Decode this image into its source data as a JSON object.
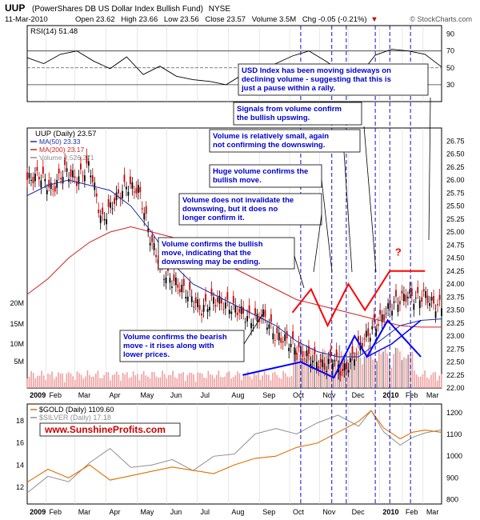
{
  "header": {
    "symbol": "UUP",
    "fund_name": "(PowerShares DB US Dollar Index Bullish Fund)",
    "exchange": "NYSE",
    "date": "11-Mar-2010",
    "open": "Open 23.62",
    "high": "High 23.66",
    "low": "Low 23.56",
    "close": "Close 23.57",
    "volume": "Volume 3.5M",
    "chg": "Chg -0.05 (-0.21%)",
    "chg_arrow": "▼",
    "copyright": "© StockCharts.com"
  },
  "colors": {
    "bg": "#ffffff",
    "panel_bg": "#ffffff",
    "grid": "#d8d8d8",
    "price_up": "#000000",
    "price_down": "#cc0000",
    "ma50": "#1a2fa8",
    "ma200": "#d42020",
    "volume_bar": "#f0a0a0",
    "volume_bar_dark": "#909090",
    "annotation_text": "#0000cc",
    "annotation_line": "#000000",
    "red_pattern": "#ff0000",
    "blue_pattern": "#0000ff",
    "gold_line": "#e07000",
    "silver_line": "#909090",
    "vertical_dash": "#1111cc",
    "watermark": "#cc0000"
  },
  "chart_data": [
    {
      "panel": "rsi",
      "type": "line",
      "label": "RSI(14) 51.48",
      "ylim": [
        10,
        100
      ],
      "yticks": [
        30,
        50,
        70,
        90
      ],
      "reference_lines": [
        30,
        50,
        70
      ],
      "x": [
        0,
        0.04,
        0.08,
        0.12,
        0.16,
        0.2,
        0.24,
        0.28,
        0.32,
        0.36,
        0.4,
        0.44,
        0.48,
        0.52,
        0.56,
        0.6,
        0.64,
        0.68,
        0.72,
        0.76,
        0.8,
        0.84,
        0.88,
        0.92,
        0.96,
        1.0
      ],
      "values": [
        62,
        55,
        66,
        70,
        58,
        49,
        63,
        42,
        52,
        40,
        36,
        34,
        30,
        42,
        48,
        55,
        64,
        70,
        58,
        45,
        40,
        65,
        72,
        70,
        66,
        51
      ]
    },
    {
      "panel": "price",
      "type": "candlestick",
      "title": "UUP (Daily) 23.57",
      "legend": [
        {
          "name": "MA(50) 23.33",
          "color": "#1a2fa8"
        },
        {
          "name": "MA(200) 23.17",
          "color": "#d42020"
        },
        {
          "name": "Volume 3,526,271",
          "color": "#909090"
        }
      ],
      "ylim": [
        22.0,
        27.0
      ],
      "yticks": [
        22.0,
        22.25,
        22.5,
        22.75,
        23.0,
        23.25,
        23.5,
        23.75,
        24.0,
        24.25,
        24.5,
        24.75,
        25.0,
        25.25,
        25.5,
        25.75,
        26.0,
        26.25,
        26.5,
        26.75
      ],
      "volume_ticks": [
        "5M",
        "10M",
        "15M",
        "20M"
      ],
      "close_path": [
        [
          0.0,
          26.0
        ],
        [
          0.03,
          26.1
        ],
        [
          0.06,
          25.8
        ],
        [
          0.09,
          26.2
        ],
        [
          0.12,
          26.0
        ],
        [
          0.15,
          26.3
        ],
        [
          0.18,
          25.2
        ],
        [
          0.21,
          25.6
        ],
        [
          0.24,
          25.9
        ],
        [
          0.27,
          25.8
        ],
        [
          0.3,
          24.8
        ],
        [
          0.33,
          24.2
        ],
        [
          0.36,
          24.0
        ],
        [
          0.39,
          23.8
        ],
        [
          0.42,
          23.5
        ],
        [
          0.45,
          23.7
        ],
        [
          0.48,
          23.6
        ],
        [
          0.51,
          23.5
        ],
        [
          0.54,
          23.3
        ],
        [
          0.57,
          23.4
        ],
        [
          0.6,
          23.0
        ],
        [
          0.63,
          22.9
        ],
        [
          0.66,
          22.7
        ],
        [
          0.68,
          22.6
        ],
        [
          0.7,
          22.5
        ],
        [
          0.72,
          22.4
        ],
        [
          0.74,
          22.6
        ],
        [
          0.76,
          22.3
        ],
        [
          0.78,
          22.5
        ],
        [
          0.8,
          22.8
        ],
        [
          0.82,
          23.0
        ],
        [
          0.84,
          23.2
        ],
        [
          0.86,
          23.4
        ],
        [
          0.88,
          23.6
        ],
        [
          0.9,
          23.7
        ],
        [
          0.92,
          23.8
        ],
        [
          0.94,
          23.7
        ],
        [
          0.96,
          23.8
        ],
        [
          0.98,
          23.6
        ],
        [
          1.0,
          23.57
        ]
      ],
      "ma50_path": [
        [
          0.0,
          25.7
        ],
        [
          0.05,
          25.9
        ],
        [
          0.1,
          26.0
        ],
        [
          0.15,
          25.9
        ],
        [
          0.2,
          25.8
        ],
        [
          0.25,
          25.5
        ],
        [
          0.3,
          25.0
        ],
        [
          0.35,
          24.4
        ],
        [
          0.4,
          24.0
        ],
        [
          0.45,
          23.8
        ],
        [
          0.5,
          23.6
        ],
        [
          0.55,
          23.4
        ],
        [
          0.6,
          23.2
        ],
        [
          0.65,
          22.9
        ],
        [
          0.7,
          22.7
        ],
        [
          0.75,
          22.6
        ],
        [
          0.8,
          22.6
        ],
        [
          0.85,
          22.9
        ],
        [
          0.9,
          23.2
        ],
        [
          0.95,
          23.3
        ],
        [
          1.0,
          23.33
        ]
      ],
      "ma200_path": [
        [
          0.0,
          23.8
        ],
        [
          0.05,
          24.1
        ],
        [
          0.1,
          24.5
        ],
        [
          0.15,
          24.8
        ],
        [
          0.2,
          25.0
        ],
        [
          0.25,
          25.1
        ],
        [
          0.3,
          25.0
        ],
        [
          0.35,
          24.9
        ],
        [
          0.4,
          24.7
        ],
        [
          0.45,
          24.5
        ],
        [
          0.5,
          24.3
        ],
        [
          0.55,
          24.1
        ],
        [
          0.6,
          23.9
        ],
        [
          0.65,
          23.7
        ],
        [
          0.7,
          23.6
        ],
        [
          0.75,
          23.5
        ],
        [
          0.8,
          23.4
        ],
        [
          0.85,
          23.3
        ],
        [
          0.9,
          23.2
        ],
        [
          0.95,
          23.17
        ],
        [
          1.0,
          23.17
        ]
      ],
      "question_mark": "?"
    },
    {
      "panel": "gold_silver",
      "type": "line",
      "series": [
        {
          "name": "$GOLD (Daily) 1109.60",
          "color": "#e07000",
          "axis": "right"
        },
        {
          "name": "$SILVER (Daily) 17.18",
          "color": "#909090",
          "axis": "left"
        }
      ],
      "left_ticks": [
        12,
        14,
        16,
        18
      ],
      "right_ticks": [
        800,
        900,
        1000,
        1100,
        1200
      ],
      "gold_path": [
        [
          0.0,
          880
        ],
        [
          0.05,
          940
        ],
        [
          0.1,
          900
        ],
        [
          0.15,
          960
        ],
        [
          0.2,
          890
        ],
        [
          0.25,
          910
        ],
        [
          0.3,
          930
        ],
        [
          0.35,
          950
        ],
        [
          0.4,
          935
        ],
        [
          0.45,
          920
        ],
        [
          0.5,
          960
        ],
        [
          0.55,
          990
        ],
        [
          0.6,
          1000
        ],
        [
          0.65,
          1040
        ],
        [
          0.7,
          1060
        ],
        [
          0.75,
          1110
        ],
        [
          0.8,
          1160
        ],
        [
          0.83,
          1210
        ],
        [
          0.86,
          1130
        ],
        [
          0.9,
          1080
        ],
        [
          0.93,
          1110
        ],
        [
          0.96,
          1120
        ],
        [
          1.0,
          1109.6
        ]
      ],
      "silver_path": [
        [
          0.0,
          11.5
        ],
        [
          0.05,
          13
        ],
        [
          0.1,
          12.5
        ],
        [
          0.15,
          14.2
        ],
        [
          0.2,
          15.5
        ],
        [
          0.25,
          13.8
        ],
        [
          0.3,
          14
        ],
        [
          0.35,
          14.5
        ],
        [
          0.4,
          13.5
        ],
        [
          0.45,
          14.8
        ],
        [
          0.5,
          15
        ],
        [
          0.55,
          16.8
        ],
        [
          0.6,
          17.3
        ],
        [
          0.65,
          16.8
        ],
        [
          0.7,
          17.8
        ],
        [
          0.75,
          18.5
        ],
        [
          0.8,
          17.5
        ],
        [
          0.83,
          18.9
        ],
        [
          0.86,
          17.0
        ],
        [
          0.9,
          15.8
        ],
        [
          0.93,
          16.5
        ],
        [
          0.96,
          16.9
        ],
        [
          1.0,
          17.18
        ]
      ]
    }
  ],
  "x_axis": {
    "labels": [
      "2009",
      "Feb",
      "Mar",
      "Apr",
      "May",
      "Jun",
      "Jul",
      "Aug",
      "Sep",
      "Oct",
      "Nov",
      "Dec",
      "2010",
      "Feb",
      "Mar"
    ]
  },
  "annotations": [
    {
      "id": "a1",
      "text": "USD Index has been moving sideways on declining volume - suggesting that this is just a pause within a rally."
    },
    {
      "id": "a2",
      "text": "Signals from volume confirm the bullish upswing."
    },
    {
      "id": "a3",
      "text": "Volume is relatively small, again not confirming the downswing."
    },
    {
      "id": "a4",
      "text": "Huge volume confirms the bullish move."
    },
    {
      "id": "a5",
      "text": "Volume does not invalidate the downswing, but it does no longer confirm it."
    },
    {
      "id": "a6",
      "text": "Volume confirms the bullish move, indicating that the downswing may be ending."
    },
    {
      "id": "a7",
      "text": "Volume confirms the bearish move - it rises along with lower prices."
    }
  ],
  "watermark": "www.SunshineProfits.com"
}
